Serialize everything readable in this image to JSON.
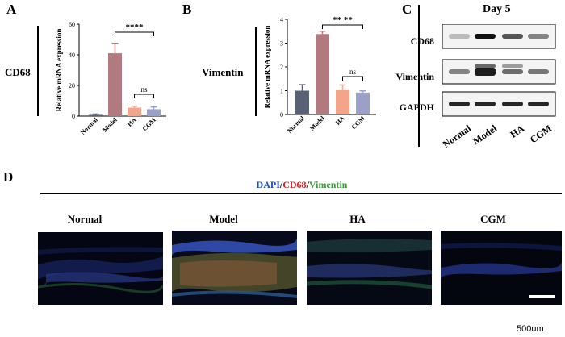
{
  "panels": {
    "A": {
      "letter": "A",
      "gene": "CD68"
    },
    "B": {
      "letter": "B",
      "gene": "Vimentin"
    },
    "C": {
      "letter": "C",
      "title": "Day 5",
      "blots": [
        "CD68",
        "Vimentin",
        "GAPDH"
      ],
      "lanes": [
        "Normal",
        "Model",
        "HA",
        "CGM"
      ]
    },
    "D": {
      "letter": "D",
      "legend": {
        "dapi": "DAPI",
        "sep1": "/",
        "cd68": "CD68",
        "sep2": "/",
        "vimentin": "Vimentin"
      },
      "images": [
        "Normal",
        "Model",
        "HA",
        "CGM"
      ],
      "scale_bar": "500um"
    }
  },
  "colors": {
    "Normal": "#596175",
    "Model": "#b07a7e",
    "HA": "#f2a58a",
    "CGM": "#9aa0c8",
    "dapi": "#1f4fbf",
    "cd68": "#d81e1e",
    "vimentin": "#3f9a3f"
  },
  "chart_data": [
    {
      "type": "bar",
      "categories": [
        "Normal",
        "Model",
        "HA",
        "CGM"
      ],
      "values": [
        0.8,
        41,
        5.5,
        4.5
      ],
      "errors": [
        0.5,
        6.5,
        1.0,
        1.5
      ],
      "ylabel": "Relative mRNA expression",
      "ylim": [
        0,
        60
      ],
      "yticks": [
        "0",
        "20",
        "40",
        "60"
      ],
      "annotations": [
        {
          "from": "Model",
          "to": "CGM",
          "text": "****"
        },
        {
          "from": "HA",
          "to": "CGM",
          "text": "ns"
        }
      ]
    },
    {
      "type": "bar",
      "categories": [
        "Normal",
        "Model",
        "HA",
        "CGM"
      ],
      "values": [
        1.0,
        3.38,
        1.02,
        0.92
      ],
      "errors": [
        0.25,
        0.12,
        0.22,
        0.07
      ],
      "ylabel": "Relative mRNA expression",
      "ylim": [
        0,
        4
      ],
      "yticks": [
        "0",
        "1",
        "2",
        "3",
        "4"
      ],
      "annotations": [
        {
          "from": "Model",
          "to": "CGM",
          "text": "** **"
        },
        {
          "from": "HA",
          "to": "CGM",
          "text": "ns"
        }
      ]
    }
  ]
}
